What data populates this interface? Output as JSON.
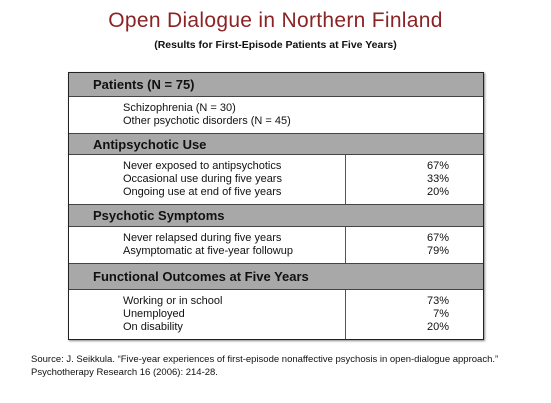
{
  "header": {
    "title": "Open Dialogue in Northern Finland",
    "subtitle": "(Results for First-Episode Patients at Five Years)"
  },
  "table": {
    "sections": [
      {
        "title": "Patients (N = 75)",
        "rows": [
          {
            "label": "Schizophrenia (N = 30)"
          },
          {
            "label": "Other psychotic disorders (N = 45)"
          }
        ]
      },
      {
        "title": "Antipsychotic Use",
        "rows": [
          {
            "label": "Never exposed to antipsychotics",
            "value": "67%"
          },
          {
            "label": "Occasional use during five years",
            "value": "33%"
          },
          {
            "label": "Ongoing use at end of five years",
            "value": "20%"
          }
        ]
      },
      {
        "title": "Psychotic Symptoms",
        "rows": [
          {
            "label": "Never relapsed during five years",
            "value": "67%"
          },
          {
            "label": "Asymptomatic at five-year followup",
            "value": "79%"
          }
        ]
      },
      {
        "title": "Functional Outcomes at Five Years",
        "rows": [
          {
            "label": "Working or in school",
            "value": "73%"
          },
          {
            "label": "Unemployed",
            "value": "7%"
          },
          {
            "label": "On disability",
            "value": "20%"
          }
        ]
      }
    ]
  },
  "source": {
    "lines": [
      "Source:  J. Seikkula. “Five-year experiences of first-episode nonaffective psychosis in open-dialogue approach.”",
      "Psychotherapy Research 16 (2006): 214-28."
    ]
  }
}
